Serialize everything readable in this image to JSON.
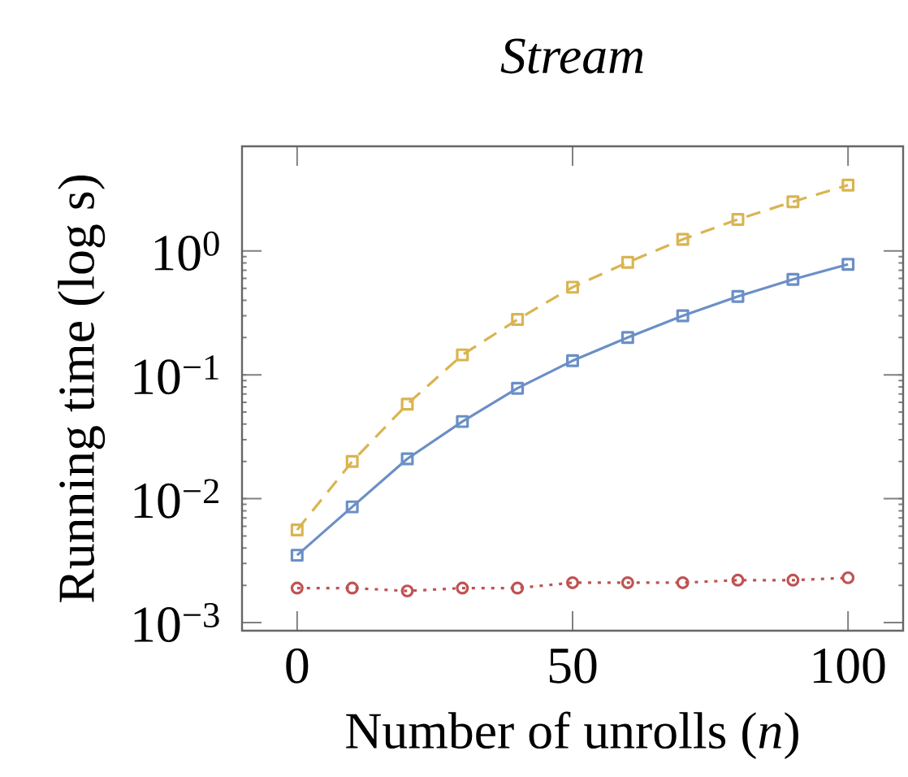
{
  "chart_data": {
    "type": "line",
    "title": "Stream",
    "xlabel": "Number of unrolls (*n*)",
    "ylabel": "Running time (log s)",
    "x": [
      0,
      10,
      20,
      30,
      40,
      50,
      60,
      70,
      80,
      90,
      100
    ],
    "series": [
      {
        "color": "#d9b451",
        "line_style": "dashed",
        "marker": "square",
        "values": [
          0.0056,
          0.02,
          0.058,
          0.145,
          0.28,
          0.51,
          0.81,
          1.24,
          1.8,
          2.5,
          3.4
        ]
      },
      {
        "color": "#6b8fc6",
        "line_style": "solid",
        "marker": "square",
        "values": [
          0.0035,
          0.0086,
          0.021,
          0.042,
          0.078,
          0.13,
          0.2,
          0.3,
          0.43,
          0.59,
          0.78
        ]
      },
      {
        "color": "#c05252",
        "line_style": "dotted",
        "marker": "circle",
        "values": [
          0.0019,
          0.0019,
          0.0018,
          0.0019,
          0.0019,
          0.0021,
          0.0021,
          0.0021,
          0.0022,
          0.0022,
          0.0023
        ]
      }
    ],
    "log": "y",
    "grid": false,
    "xlim": [
      -10,
      110
    ],
    "xticks": [
      0,
      50,
      100
    ],
    "ylim": [
      0.00086,
      7
    ],
    "yticks": [
      {
        "value": 0.001,
        "label": "10$^{−3}$"
      },
      {
        "value": 0.01,
        "label": "10$^{−2}$"
      },
      {
        "value": 0.1,
        "label": "10$^{−1}$"
      },
      {
        "value": 1,
        "label": "10$^{0}$"
      }
    ]
  }
}
